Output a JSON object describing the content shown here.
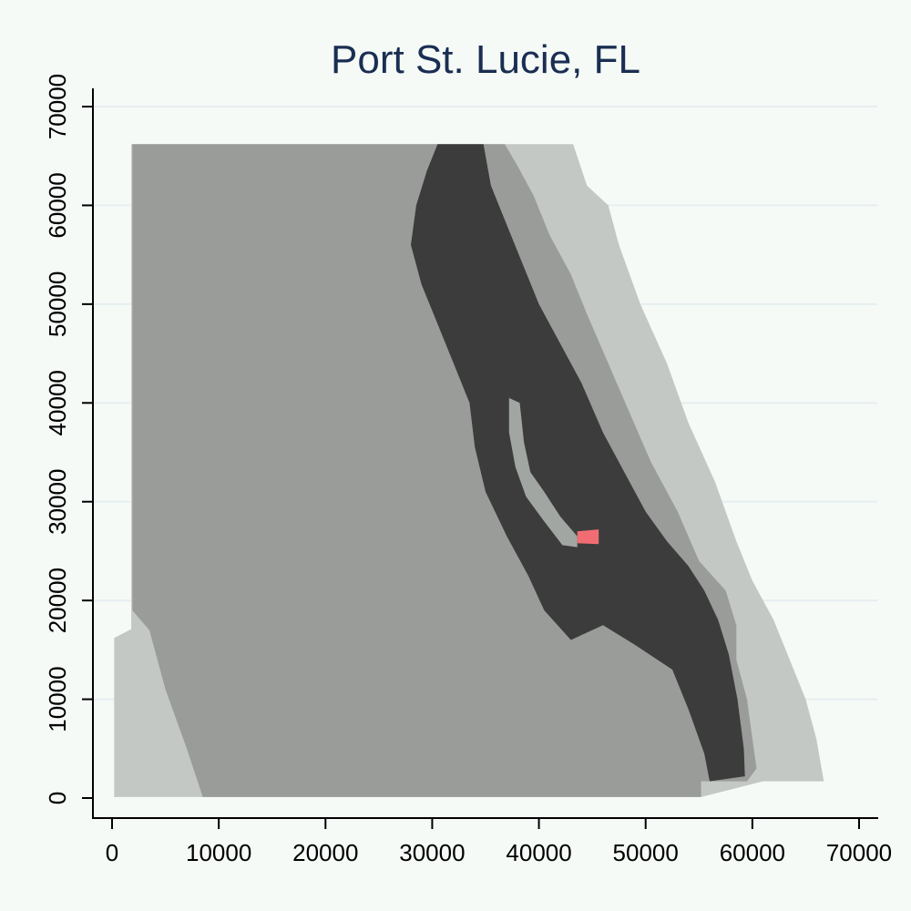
{
  "chart_data": {
    "type": "map",
    "title": "Port St. Lucie, FL",
    "xlabel": "",
    "ylabel": "",
    "xlim": [
      0,
      70000
    ],
    "ylim": [
      0,
      70000
    ],
    "x_ticks": [
      0,
      10000,
      20000,
      30000,
      40000,
      50000,
      60000,
      70000
    ],
    "y_ticks": [
      0,
      10000,
      20000,
      30000,
      40000,
      50000,
      60000,
      70000
    ],
    "x_tick_labels": [
      "0",
      "10000",
      "20000",
      "30000",
      "40000",
      "50000",
      "60000",
      "70000"
    ],
    "y_tick_labels": [
      "0",
      "10000",
      "20000",
      "30000",
      "40000",
      "50000",
      "60000",
      "70000"
    ],
    "grid": "horizontal",
    "legend": "none",
    "layers": [
      {
        "name": "outer-area",
        "color": "#c4c8c4",
        "polygon": [
          [
            200,
            16200
          ],
          [
            1800,
            17100
          ],
          [
            1800,
            66200
          ],
          [
            43200,
            66200
          ],
          [
            44500,
            62000
          ],
          [
            46500,
            60000
          ],
          [
            47500,
            56000
          ],
          [
            49500,
            50000
          ],
          [
            52000,
            44000
          ],
          [
            54000,
            38000
          ],
          [
            56500,
            32000
          ],
          [
            58500,
            26000
          ],
          [
            60000,
            22000
          ],
          [
            62000,
            18000
          ],
          [
            63500,
            14000
          ],
          [
            65000,
            10000
          ],
          [
            66000,
            6000
          ],
          [
            66700,
            1700
          ],
          [
            61000,
            1700
          ],
          [
            55200,
            100
          ],
          [
            200,
            100
          ]
        ]
      },
      {
        "name": "county-area",
        "color": "#9a9c9a",
        "polygon": [
          [
            1900,
            19000
          ],
          [
            1900,
            66200
          ],
          [
            36800,
            66200
          ],
          [
            38000,
            64000
          ],
          [
            39500,
            61000
          ],
          [
            41000,
            57000
          ],
          [
            43000,
            53000
          ],
          [
            44500,
            49000
          ],
          [
            46500,
            44000
          ],
          [
            48500,
            39000
          ],
          [
            50500,
            34000
          ],
          [
            53000,
            29000
          ],
          [
            55000,
            24000
          ],
          [
            57500,
            21000
          ],
          [
            58500,
            17500
          ],
          [
            58500,
            14000
          ],
          [
            59500,
            10000
          ],
          [
            60000,
            6000
          ],
          [
            60400,
            3000
          ],
          [
            59500,
            1700
          ],
          [
            55200,
            1700
          ],
          [
            55200,
            100
          ],
          [
            8500,
            100
          ],
          [
            7000,
            5000
          ],
          [
            5000,
            11000
          ],
          [
            3500,
            17000
          ]
        ]
      },
      {
        "name": "developed-area",
        "color": "#3c3c3c",
        "polygon": [
          [
            30500,
            66200
          ],
          [
            34800,
            66200
          ],
          [
            35500,
            62000
          ],
          [
            37000,
            58000
          ],
          [
            38500,
            54000
          ],
          [
            40000,
            50000
          ],
          [
            42000,
            46000
          ],
          [
            44000,
            42000
          ],
          [
            46000,
            37000
          ],
          [
            48000,
            33000
          ],
          [
            50000,
            29000
          ],
          [
            52000,
            26000
          ],
          [
            54000,
            23500
          ],
          [
            55500,
            21000
          ],
          [
            56800,
            18000
          ],
          [
            57800,
            14500
          ],
          [
            58600,
            10000
          ],
          [
            59200,
            5000
          ],
          [
            59300,
            2200
          ],
          [
            56000,
            1700
          ],
          [
            55500,
            4500
          ],
          [
            54000,
            9000
          ],
          [
            52500,
            13000
          ],
          [
            49000,
            15500
          ],
          [
            46000,
            17500
          ],
          [
            43000,
            16000
          ],
          [
            40500,
            19000
          ],
          [
            39000,
            22500
          ],
          [
            37000,
            26500
          ],
          [
            35000,
            31000
          ],
          [
            34000,
            35500
          ],
          [
            33500,
            40000
          ],
          [
            32000,
            44000
          ],
          [
            30500,
            48000
          ],
          [
            29000,
            52000
          ],
          [
            28000,
            56000
          ],
          [
            28500,
            60000
          ],
          [
            29500,
            63500
          ]
        ]
      },
      {
        "name": "river",
        "color": "#a2a6a2",
        "polygon": [
          [
            37200,
            40500
          ],
          [
            38200,
            40000
          ],
          [
            38600,
            36000
          ],
          [
            39200,
            33000
          ],
          [
            40500,
            31000
          ],
          [
            42000,
            28500
          ],
          [
            43600,
            26500
          ],
          [
            43600,
            25400
          ],
          [
            42200,
            25600
          ],
          [
            40500,
            28000
          ],
          [
            38800,
            30500
          ],
          [
            37800,
            33500
          ],
          [
            37200,
            37000
          ]
        ]
      },
      {
        "name": "site-marker",
        "color": "#f26d73",
        "polygon": [
          [
            43600,
            27000
          ],
          [
            45600,
            27200
          ],
          [
            45600,
            25700
          ],
          [
            43600,
            25800
          ]
        ]
      }
    ]
  }
}
